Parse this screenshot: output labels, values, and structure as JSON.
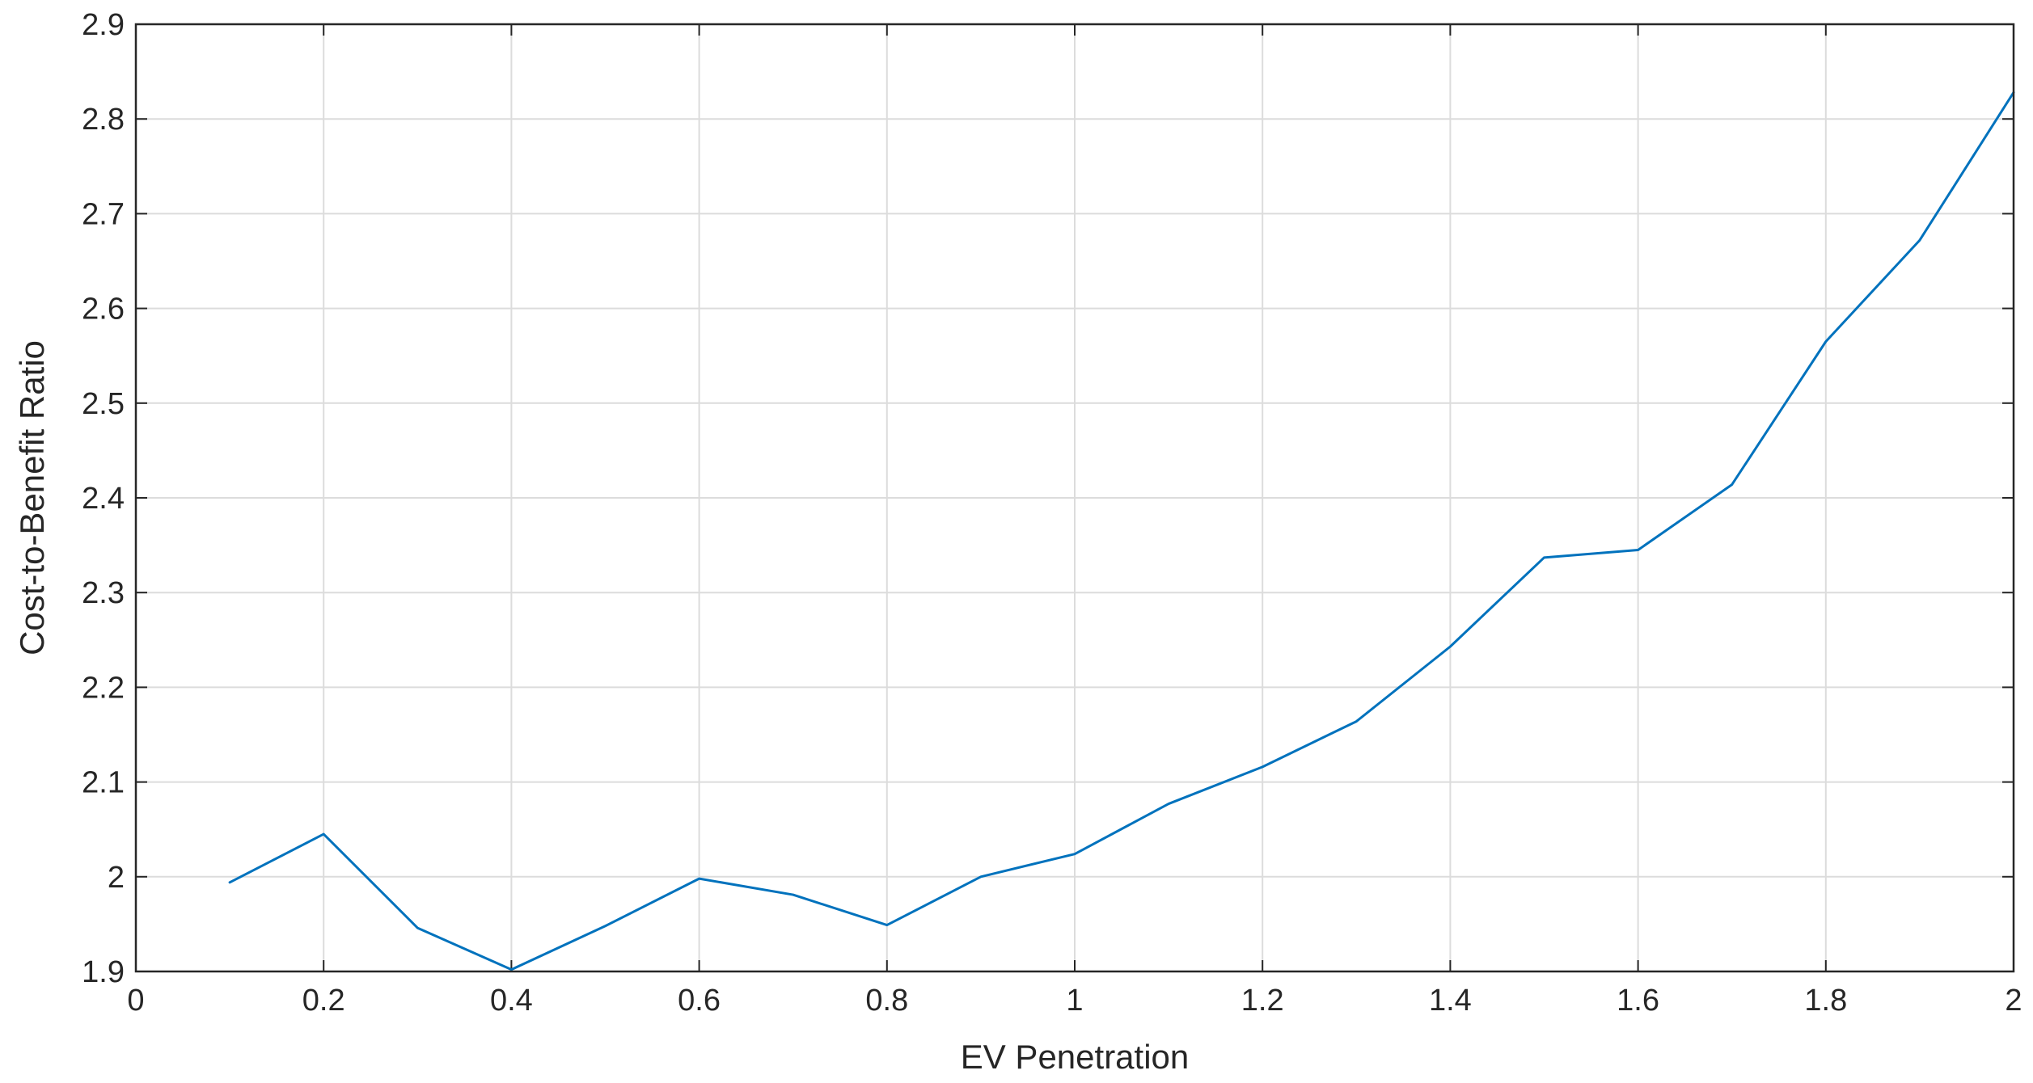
{
  "chart_data": {
    "type": "line",
    "xlabel": "EV Penetration",
    "ylabel": "Cost-to-Benefit Ratio",
    "xlim": [
      0,
      2
    ],
    "ylim": [
      1.9,
      2.9
    ],
    "xticks": [
      "0",
      "0.2",
      "0.4",
      "0.6",
      "0.8",
      "1",
      "1.2",
      "1.4",
      "1.6",
      "1.8",
      "2"
    ],
    "yticks": [
      "1.9",
      "2",
      "2.1",
      "2.2",
      "2.3",
      "2.4",
      "2.5",
      "2.6",
      "2.7",
      "2.8",
      "2.9"
    ],
    "grid": true,
    "line_color": "#0072BD",
    "x": [
      0.1,
      0.2,
      0.3,
      0.4,
      0.5,
      0.6,
      0.7,
      0.8,
      0.9,
      1.0,
      1.1,
      1.2,
      1.3,
      1.4,
      1.5,
      1.6,
      1.7,
      1.8,
      1.9,
      2.0
    ],
    "y": [
      1.994,
      2.045,
      1.946,
      1.902,
      1.948,
      1.998,
      1.981,
      1.949,
      2.0,
      2.024,
      2.077,
      2.116,
      2.164,
      2.243,
      2.337,
      2.345,
      2.414,
      2.565,
      2.672,
      2.828
    ]
  }
}
